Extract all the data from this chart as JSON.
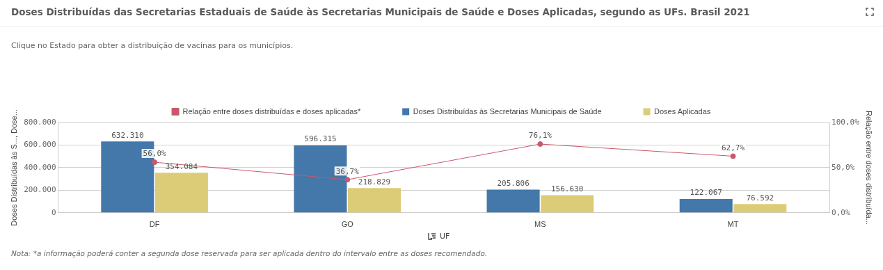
{
  "chart_data": {
    "type": "bar",
    "title": "Doses Distribuídas das Secretarias Estaduais de Saúde às Secretarias Municipais de Saúde e Doses Aplicadas, segundo as UFs. Brasil 2021",
    "subtitle": "Clique no Estado para obter a distribuição de vacinas para os municípios.",
    "xlabel": "UF",
    "ylabel": "Doses Distribuídas às S..., Dose...",
    "y2label": "Relação entre doses distribuída...",
    "categories": [
      "DF",
      "GO",
      "MS",
      "MT"
    ],
    "series": [
      {
        "name": "Doses Distribuídas às Secretarias Municipais de Saúde",
        "color": "#4477aa",
        "values": [
          632310,
          596315,
          205806,
          122067
        ],
        "value_labels": [
          "632.310",
          "596.315",
          "205.806",
          "122.067"
        ]
      },
      {
        "name": "Doses Aplicadas",
        "color": "#ddcc77",
        "values": [
          354084,
          218829,
          156630,
          76592
        ],
        "value_labels": [
          "354.084",
          "218.829",
          "156.630",
          "76.592"
        ]
      },
      {
        "type": "line",
        "axis": "y2",
        "name": "Relação entre doses distribuídas e doses aplicadas*",
        "color": "#c8596c",
        "values": [
          56.0,
          36.7,
          76.1,
          62.7
        ],
        "value_labels": [
          "56,0%",
          "36,7%",
          "76,1%",
          "62,7%"
        ]
      }
    ],
    "ylim": [
      0,
      800000
    ],
    "yticks": [
      {
        "value": 0,
        "label": "0"
      },
      {
        "value": 200000,
        "label": "200.000"
      },
      {
        "value": 400000,
        "label": "400.000"
      },
      {
        "value": 600000,
        "label": "600.000"
      },
      {
        "value": 800000,
        "label": "800.000"
      }
    ],
    "y2lim": [
      0,
      100
    ],
    "y2ticks": [
      {
        "value": 0,
        "label": "0,0%"
      },
      {
        "value": 50,
        "label": "50,0%"
      },
      {
        "value": 100,
        "label": "100,0%"
      }
    ],
    "grid": "y",
    "legend": "top",
    "marker": "circle",
    "annotations": [
      "Nota: *a informação poderá conter a segunda dose reservada para ser aplicada dentro do intervalo entre as doses recomendado."
    ]
  }
}
